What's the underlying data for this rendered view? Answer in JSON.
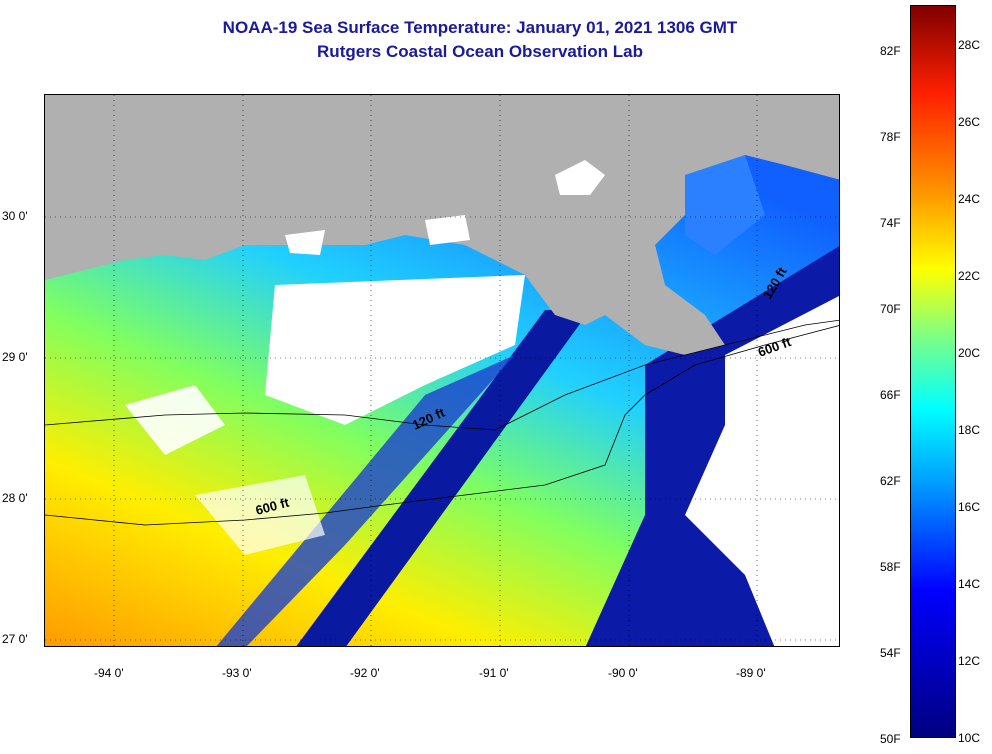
{
  "title": {
    "line1": "NOAA-19 Sea Surface Temperature:  January 01, 2021 1306 GMT",
    "line2": "Rutgers Coastal Ocean Observation Lab"
  },
  "map": {
    "lat_ticks": [
      "30 0'",
      "29 0'",
      "28 0'",
      "27 0'"
    ],
    "lon_ticks": [
      "-94 0'",
      "-93 0'",
      "-92 0'",
      "-91 0'",
      "-90 0'",
      "-89 0'"
    ],
    "contour_labels": [
      "120 ft",
      "600 ft",
      "120 ft",
      "600 ft"
    ],
    "colors": {
      "land": "#b0b0b0",
      "cloud": "#ffffff",
      "grid": "#000000"
    }
  },
  "colorbar": {
    "fahrenheit": [
      "82F",
      "78F",
      "74F",
      "70F",
      "66F",
      "62F",
      "58F",
      "54F",
      "50F"
    ],
    "celsius": [
      "28C",
      "26C",
      "24C",
      "22C",
      "20C",
      "18C",
      "16C",
      "14C",
      "12C",
      "10C"
    ],
    "range_c": [
      10,
      29
    ]
  }
}
